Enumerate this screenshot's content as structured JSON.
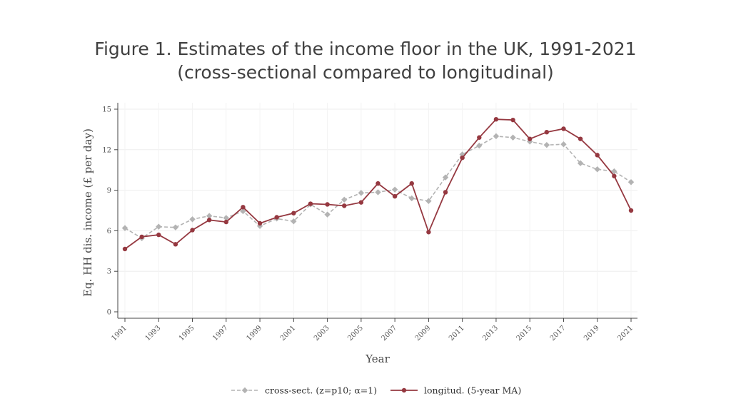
{
  "slide": {
    "title_line1": "Figure 1. Estimates of the income floor in the UK, 1991-2021",
    "title_line2": "(cross-sectional compared to longitudinal)"
  },
  "chart_data": {
    "type": "line",
    "xlabel": "Year",
    "ylabel": "Eq. HH dis. income (£ per day)",
    "ylim": [
      0,
      15
    ],
    "xlim": [
      1991,
      2021
    ],
    "yticks": [
      0,
      3,
      6,
      9,
      12,
      15
    ],
    "xticks": [
      "1991",
      "1993",
      "1995",
      "1997",
      "1999",
      "2001",
      "2003",
      "2005",
      "2007",
      "2009",
      "2011",
      "2013",
      "2015",
      "2017",
      "2019",
      "2021"
    ],
    "grid": true,
    "legend_position": "bottom",
    "x": [
      1991,
      1992,
      1993,
      1994,
      1995,
      1996,
      1997,
      1998,
      1999,
      2000,
      2001,
      2002,
      2003,
      2004,
      2005,
      2006,
      2007,
      2008,
      2009,
      2010,
      2011,
      2012,
      2013,
      2014,
      2015,
      2016,
      2017,
      2018,
      2019,
      2020,
      2021
    ],
    "series": [
      {
        "name": "cross-sect. (z=p10; α=1)",
        "style": "dashed",
        "marker": "diamond",
        "color": "#b3b3b3",
        "values": [
          6.2,
          5.45,
          6.3,
          6.25,
          6.85,
          7.1,
          6.95,
          7.45,
          6.35,
          6.9,
          6.7,
          7.95,
          7.2,
          8.3,
          8.8,
          8.85,
          9.05,
          8.4,
          8.2,
          9.95,
          11.65,
          12.3,
          13.0,
          12.9,
          12.6,
          12.35,
          12.4,
          11.0,
          10.55,
          10.4,
          9.6
        ]
      },
      {
        "name": "longitud. (5-year MA)",
        "style": "solid",
        "marker": "circle",
        "color": "#953840",
        "values": [
          4.65,
          5.55,
          5.7,
          5.0,
          6.05,
          6.8,
          6.65,
          7.75,
          6.55,
          7.0,
          7.3,
          8.0,
          7.95,
          7.85,
          8.1,
          9.5,
          8.55,
          9.5,
          5.9,
          8.85,
          11.4,
          12.9,
          14.25,
          14.2,
          12.8,
          13.3,
          13.55,
          12.8,
          11.6,
          10.05,
          7.5
        ]
      }
    ]
  }
}
